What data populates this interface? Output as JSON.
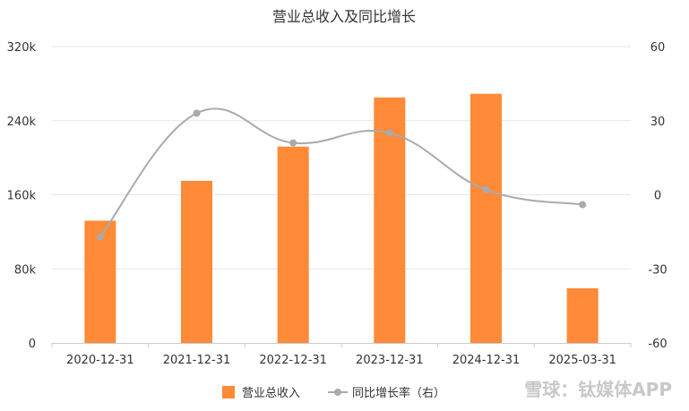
{
  "chart_data": {
    "type": "bar",
    "title": "营业总收入及同比增长",
    "categories": [
      "2020-12-31",
      "2021-12-31",
      "2022-12-31",
      "2023-12-31",
      "2024-12-31",
      "2025-03-31"
    ],
    "series": [
      {
        "name": "营业总收入",
        "type": "bar",
        "axis": "left",
        "color": "#ff8a38",
        "values": [
          132000,
          175000,
          212000,
          265000,
          269000,
          59000
        ]
      },
      {
        "name": "同比增长率（右）",
        "type": "line",
        "axis": "right",
        "color": "#aaaaaa",
        "values": [
          -17,
          33,
          21,
          25,
          2,
          -4
        ]
      }
    ],
    "y_left": {
      "min": 0,
      "max": 320000,
      "ticks": [
        "0",
        "80k",
        "160k",
        "240k",
        "320k"
      ]
    },
    "y_right": {
      "min": -60,
      "max": 60,
      "ticks": [
        "-60",
        "-30",
        "0",
        "30",
        "60"
      ]
    },
    "grid": true,
    "legend_position": "bottom"
  },
  "watermark": "雪球：钛媒体APP"
}
